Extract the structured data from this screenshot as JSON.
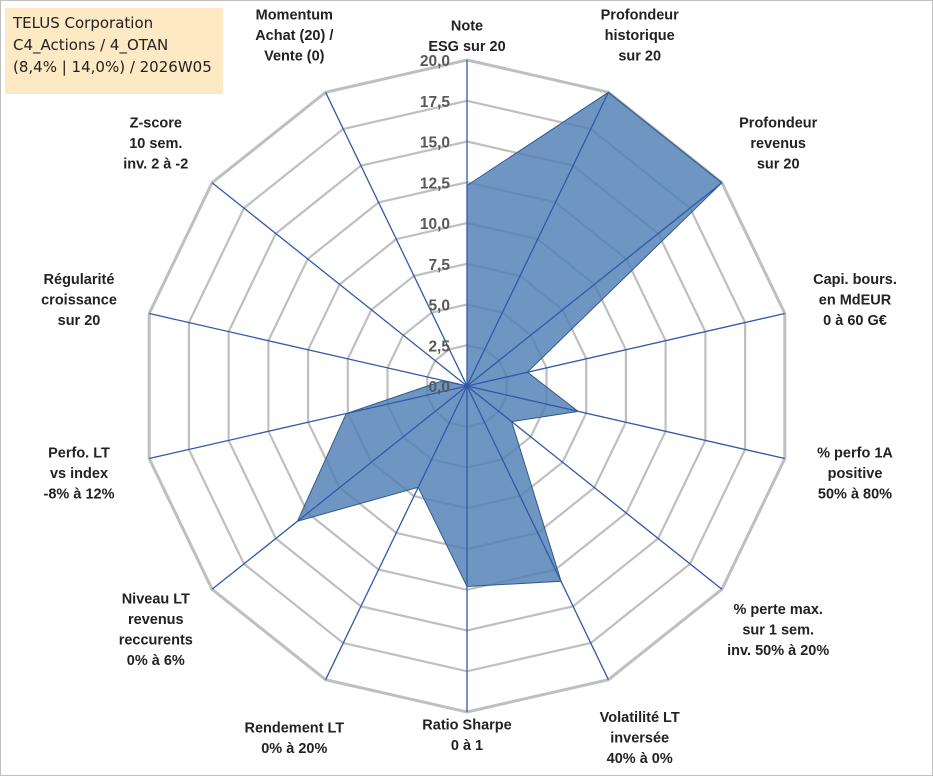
{
  "title_box": {
    "line1": "TELUS Corporation",
    "line2": "C4_Actions / 4_OTAN",
    "line3": "(8,4% | 14,0%) / 2026W05"
  },
  "colors": {
    "fill": "#4f7fb5",
    "stroke": "#2e5a8c",
    "spoke": "#2f5aa8",
    "grid": "#bfbfbf",
    "title_bg": "#fde9c3"
  },
  "chart_data": {
    "type": "radar",
    "rlim": [
      0,
      20
    ],
    "grid": true,
    "ticks": [
      "0,0",
      "2,5",
      "5,0",
      "7,5",
      "10,0",
      "12,5",
      "15,0",
      "17,5",
      "20,0"
    ],
    "tick_values": [
      0,
      2.5,
      5,
      7.5,
      10,
      12.5,
      15,
      17.5,
      20
    ],
    "axes": [
      {
        "label": [
          "Note",
          "ESG sur 20"
        ],
        "value": 12.3
      },
      {
        "label": [
          "Profondeur",
          "historique",
          "sur 20"
        ],
        "value": 20
      },
      {
        "label": [
          "Profondeur",
          "revenus",
          "sur 20"
        ],
        "value": 20
      },
      {
        "label": [
          "Capi. bours.",
          "en MdEUR",
          "0 à 60 G€"
        ],
        "value": 3.8
      },
      {
        "label": [
          "% perfo 1A",
          "positive",
          "50% à 80%"
        ],
        "value": 7.0
      },
      {
        "label": [
          "% perte max.",
          "sur 1 sem.",
          "inv. 50% à 20%"
        ],
        "value": 3.5
      },
      {
        "label": [
          "Volatilité LT",
          "inversée",
          "40% à 0%"
        ],
        "value": 13.3
      },
      {
        "label": [
          "Ratio Sharpe",
          "0 à 1"
        ],
        "value": 12.3
      },
      {
        "label": [
          "Rendement LT",
          "0% à 20%"
        ],
        "value": 6.9
      },
      {
        "label": [
          "Niveau LT",
          "revenus",
          "reccurents",
          "0% à 6%"
        ],
        "value": 13.3
      },
      {
        "label": [
          "Perfo. LT",
          "vs index",
          "-8% à 12%"
        ],
        "value": 7.6
      },
      {
        "label": [
          "Régularité",
          "croissance",
          "sur 20"
        ],
        "value": 1.5
      },
      {
        "label": [
          "Z-score",
          "10 sem.",
          "inv. 2 à -2"
        ],
        "value": 0
      },
      {
        "label": [
          "Momentum",
          "Achat (20) /",
          "Vente (0)"
        ],
        "value": 0
      }
    ]
  }
}
